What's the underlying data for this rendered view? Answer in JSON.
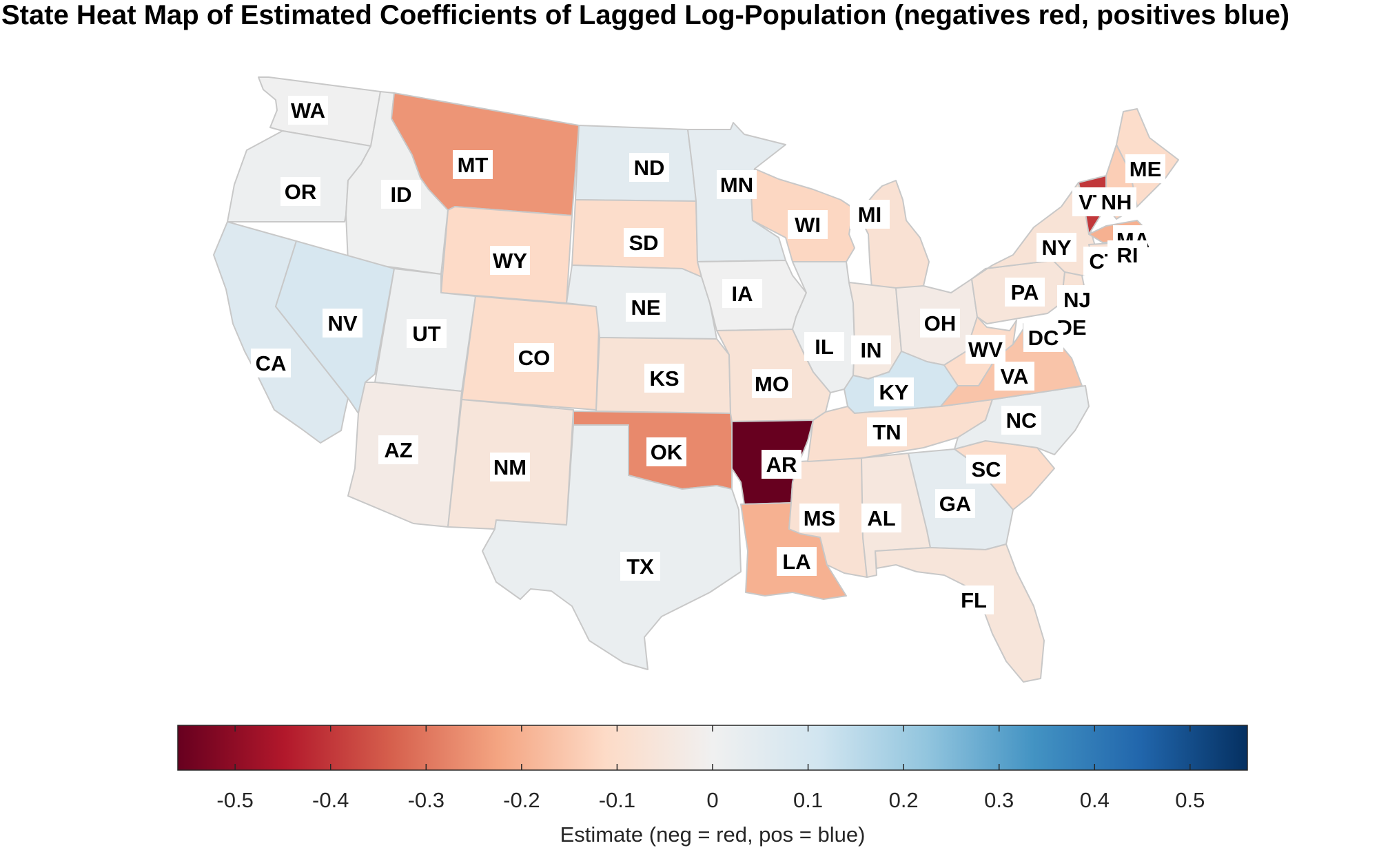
{
  "title": "State Heat Map of Estimated Coefficients of Lagged Log-Population (negatives red, positives blue)",
  "chart_data": {
    "type": "choropleth",
    "region": "contiguous US states",
    "colorbar": {
      "label": "Estimate (neg = red, pos = blue)",
      "range": [
        -0.56,
        0.56
      ],
      "ticks": [
        -0.5,
        -0.4,
        -0.3,
        -0.2,
        -0.1,
        0,
        0.1,
        0.2,
        0.3,
        0.4,
        0.5
      ],
      "tick_labels": [
        "-0.5",
        "-0.4",
        "-0.3",
        "-0.2",
        "-0.1",
        "0",
        "0.1",
        "0.2",
        "0.3",
        "0.4",
        "0.5"
      ],
      "colormap": [
        "#67001f",
        "#b2182b",
        "#d6604d",
        "#f4a582",
        "#fddbc7",
        "#f0f0f0",
        "#d1e5f0",
        "#92c5de",
        "#4393c3",
        "#2166ac",
        "#053061"
      ]
    },
    "states": [
      {
        "abbr": "WA",
        "value": 0.0
      },
      {
        "abbr": "OR",
        "value": 0.01
      },
      {
        "abbr": "CA",
        "value": 0.07
      },
      {
        "abbr": "ID",
        "value": 0.005
      },
      {
        "abbr": "NV",
        "value": 0.09
      },
      {
        "abbr": "MT",
        "value": -0.25
      },
      {
        "abbr": "WY",
        "value": -0.11
      },
      {
        "abbr": "UT",
        "value": 0.01
      },
      {
        "abbr": "AZ",
        "value": -0.03
      },
      {
        "abbr": "CO",
        "value": -0.1
      },
      {
        "abbr": "NM",
        "value": -0.06
      },
      {
        "abbr": "ND",
        "value": 0.05
      },
      {
        "abbr": "SD",
        "value": -0.1
      },
      {
        "abbr": "NE",
        "value": 0.02
      },
      {
        "abbr": "KS",
        "value": -0.07
      },
      {
        "abbr": "OK",
        "value": -0.27
      },
      {
        "abbr": "TX",
        "value": 0.02
      },
      {
        "abbr": "MN",
        "value": 0.04
      },
      {
        "abbr": "IA",
        "value": 0.0
      },
      {
        "abbr": "MO",
        "value": -0.07
      },
      {
        "abbr": "AR",
        "value": -0.56
      },
      {
        "abbr": "LA",
        "value": -0.2
      },
      {
        "abbr": "WI",
        "value": -0.12
      },
      {
        "abbr": "IL",
        "value": 0.01
      },
      {
        "abbr": "MS",
        "value": -0.08
      },
      {
        "abbr": "MI",
        "value": -0.08
      },
      {
        "abbr": "IN",
        "value": -0.04
      },
      {
        "abbr": "KY",
        "value": 0.1
      },
      {
        "abbr": "TN",
        "value": -0.09
      },
      {
        "abbr": "AL",
        "value": -0.05
      },
      {
        "abbr": "OH",
        "value": -0.03
      },
      {
        "abbr": "GA",
        "value": 0.04
      },
      {
        "abbr": "FL",
        "value": -0.06
      },
      {
        "abbr": "SC",
        "value": -0.1
      },
      {
        "abbr": "NC",
        "value": 0.02
      },
      {
        "abbr": "VA",
        "value": -0.16
      },
      {
        "abbr": "WV",
        "value": -0.1
      },
      {
        "abbr": "PA",
        "value": -0.06
      },
      {
        "abbr": "NY",
        "value": -0.07
      },
      {
        "abbr": "NJ",
        "value": -0.07
      },
      {
        "abbr": "DE",
        "value": -0.07
      },
      {
        "abbr": "DC",
        "value": -0.12
      },
      {
        "abbr": "VT",
        "value": -0.4
      },
      {
        "abbr": "NH",
        "value": -0.14
      },
      {
        "abbr": "ME",
        "value": -0.1
      },
      {
        "abbr": "MA",
        "value": -0.2
      },
      {
        "abbr": "CT",
        "value": -0.08
      },
      {
        "abbr": "RI",
        "value": -0.22
      }
    ]
  }
}
